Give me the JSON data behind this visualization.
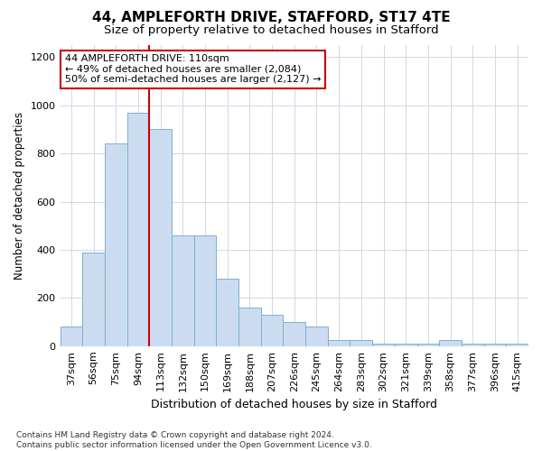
{
  "title1": "44, AMPLEFORTH DRIVE, STAFFORD, ST17 4TE",
  "title2": "Size of property relative to detached houses in Stafford",
  "xlabel": "Distribution of detached houses by size in Stafford",
  "ylabel": "Number of detached properties",
  "categories": [
    "37sqm",
    "56sqm",
    "75sqm",
    "94sqm",
    "113sqm",
    "132sqm",
    "150sqm",
    "169sqm",
    "188sqm",
    "207sqm",
    "226sqm",
    "245sqm",
    "264sqm",
    "283sqm",
    "302sqm",
    "321sqm",
    "339sqm",
    "358sqm",
    "377sqm",
    "396sqm",
    "415sqm"
  ],
  "values": [
    80,
    390,
    840,
    970,
    900,
    460,
    460,
    280,
    160,
    130,
    100,
    80,
    25,
    25,
    10,
    10,
    10,
    25,
    10,
    10,
    10
  ],
  "bar_color": "#ccdcf0",
  "bar_edge_color": "#7bafd4",
  "red_line_index": 4,
  "annotation_text": "44 AMPLEFORTH DRIVE: 110sqm\n← 49% of detached houses are smaller (2,084)\n50% of semi-detached houses are larger (2,127) →",
  "annotation_box_color": "#ffffff",
  "annotation_box_edge_color": "#cc0000",
  "ylim": [
    0,
    1250
  ],
  "yticks": [
    0,
    200,
    400,
    600,
    800,
    1000,
    1200
  ],
  "footnote": "Contains HM Land Registry data © Crown copyright and database right 2024.\nContains public sector information licensed under the Open Government Licence v3.0.",
  "background_color": "#ffffff",
  "grid_color": "#d0d8e4",
  "title1_fontsize": 11,
  "title2_fontsize": 9.5,
  "xlabel_fontsize": 9,
  "ylabel_fontsize": 8.5,
  "tick_fontsize": 8,
  "annotation_fontsize": 8,
  "footnote_fontsize": 6.5
}
